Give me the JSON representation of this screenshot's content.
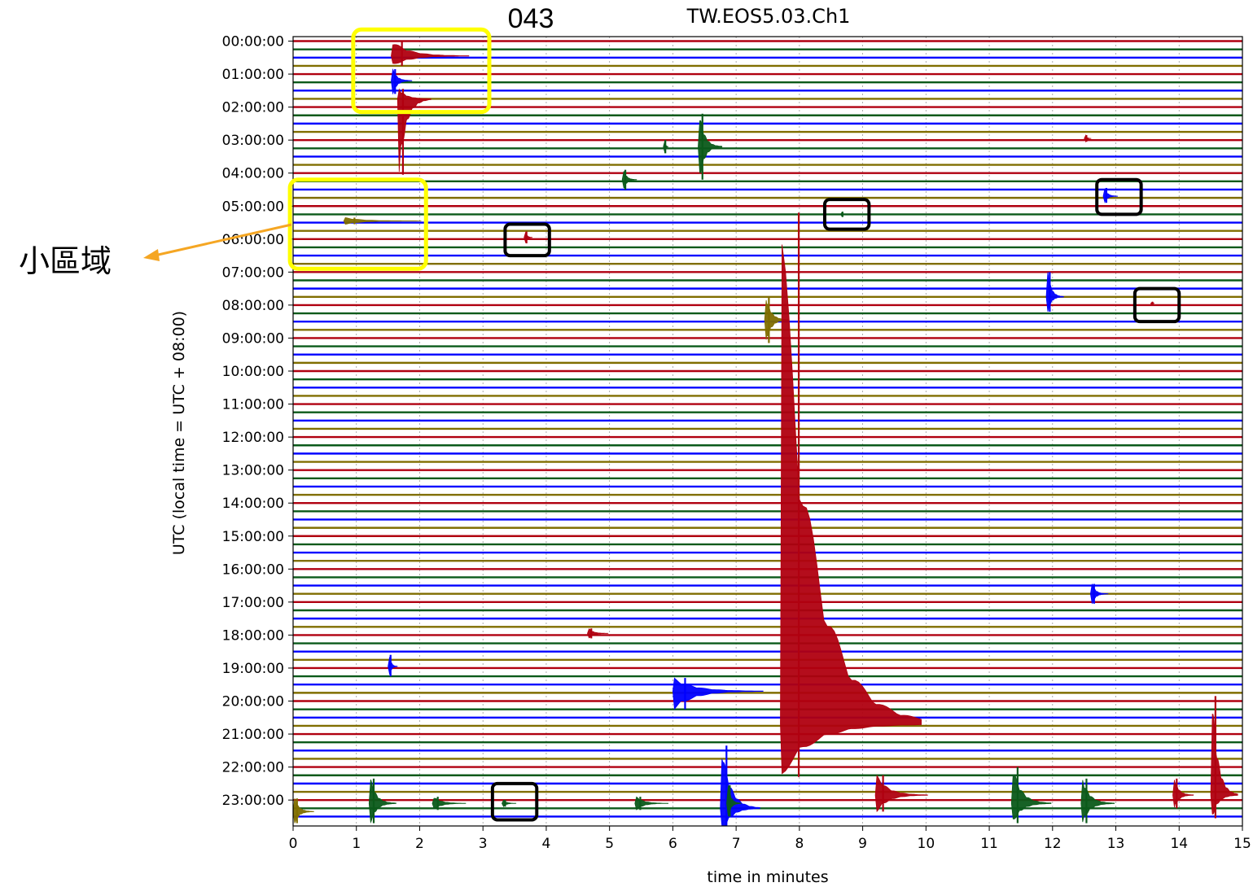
{
  "chart_data": {
    "type": "line",
    "title": "TW.EOS5.03.Ch1",
    "xlabel": "time in minutes",
    "ylabel": "UTC (local time = UTC + 08:00)",
    "xlim": [
      0,
      15
    ],
    "x_ticks": [
      "0",
      "1",
      "2",
      "3",
      "4",
      "5",
      "6",
      "7",
      "8",
      "9",
      "10",
      "11",
      "12",
      "13",
      "14",
      "15"
    ],
    "y_ticks": [
      "00:00:00",
      "01:00:00",
      "02:00:00",
      "03:00:00",
      "04:00:00",
      "05:00:00",
      "06:00:00",
      "07:00:00",
      "08:00:00",
      "09:00:00",
      "10:00:00",
      "11:00:00",
      "12:00:00",
      "13:00:00",
      "14:00:00",
      "15:00:00",
      "16:00:00",
      "17:00:00",
      "18:00:00",
      "19:00:00",
      "20:00:00",
      "21:00:00",
      "22:00:00",
      "23:00:00"
    ],
    "traces_per_hour": 4,
    "trace_colors": [
      "#b00010",
      "#0b5a1a",
      "#0000ff",
      "#806e00"
    ],
    "grid": "vertical dotted",
    "events": [
      {
        "hour": 0.45,
        "minute": 1.55,
        "amp_up": 0.45,
        "amp_down": 0.3,
        "decay": 1.2,
        "color": "#b00010"
      },
      {
        "hour": 1.75,
        "minute": 1.65,
        "amp_up": 0.3,
        "amp_down": 2.3,
        "decay": 0.5,
        "color": "#b00010"
      },
      {
        "hour": 1.2,
        "minute": 1.55,
        "amp_up": 0.35,
        "amp_down": 0.4,
        "decay": 0.3,
        "color": "#0000ff"
      },
      {
        "hour": 3.2,
        "minute": 6.4,
        "amp_up": 1.0,
        "amp_down": 1.0,
        "decay": 0.35,
        "color": "#0b5a1a"
      },
      {
        "hour": 3.2,
        "minute": 5.85,
        "amp_up": 0.2,
        "amp_down": 0.2,
        "decay": 0.05,
        "color": "#0b5a1a"
      },
      {
        "hour": 2.95,
        "minute": 12.5,
        "amp_up": 0.1,
        "amp_down": 0.1,
        "decay": 0.08,
        "color": "#b00010"
      },
      {
        "hour": 4.2,
        "minute": 5.2,
        "amp_up": 0.3,
        "amp_down": 0.3,
        "decay": 0.2,
        "color": "#0b5a1a"
      },
      {
        "hour": 4.7,
        "minute": 12.8,
        "amp_up": 0.25,
        "amp_down": 0.2,
        "decay": 0.2,
        "color": "#0000ff"
      },
      {
        "hour": 5.45,
        "minute": 0.8,
        "amp_up": 0.1,
        "amp_down": 0.1,
        "decay": 1.2,
        "color": "#806e00"
      },
      {
        "hour": 5.25,
        "minute": 8.65,
        "amp_up": 0.08,
        "amp_down": 0.08,
        "decay": 0.05,
        "color": "#0b5a1a"
      },
      {
        "hour": 5.95,
        "minute": 3.65,
        "amp_up": 0.18,
        "amp_down": 0.18,
        "decay": 0.1,
        "color": "#b00010"
      },
      {
        "hour": 7.75,
        "minute": 11.9,
        "amp_up": 0.75,
        "amp_down": 0.45,
        "decay": 0.25,
        "color": "#0000ff"
      },
      {
        "hour": 7.95,
        "minute": 13.55,
        "amp_up": 0.05,
        "amp_down": 0.05,
        "decay": 0.03,
        "color": "#b00010"
      },
      {
        "hour": 8.45,
        "minute": 7.45,
        "amp_up": 0.7,
        "amp_down": 0.7,
        "decay": 0.35,
        "color": "#806e00"
      },
      {
        "hour": 16.75,
        "minute": 12.6,
        "amp_up": 0.3,
        "amp_down": 0.3,
        "decay": 0.25,
        "color": "#0000ff"
      },
      {
        "hour": 17.95,
        "minute": 4.65,
        "amp_up": 0.15,
        "amp_down": 0.15,
        "decay": 0.3,
        "color": "#b00010"
      },
      {
        "hour": 18.95,
        "minute": 1.5,
        "amp_up": 0.35,
        "amp_down": 0.3,
        "decay": 0.12,
        "color": "#0000ff"
      },
      {
        "hour": 19.7,
        "minute": 6.0,
        "amp_up": 0.4,
        "amp_down": 0.55,
        "decay": 1.4,
        "color": "#0000ff"
      },
      {
        "hour": 20.7,
        "minute": 7.7,
        "amp_up": 15.5,
        "amp_down": 1.6,
        "decay": 2.2,
        "color": "#b00010"
      },
      {
        "hour": 23.25,
        "minute": 6.75,
        "amp_up": 1.9,
        "amp_down": 0.8,
        "decay": 0.6,
        "color": "#0000ff"
      },
      {
        "hour": 23.1,
        "minute": 6.85,
        "amp_up": 0.55,
        "amp_down": 0.4,
        "decay": 0.2,
        "color": "#0b5a1a"
      },
      {
        "hour": 23.1,
        "minute": 1.2,
        "amp_up": 0.75,
        "amp_down": 0.6,
        "decay": 0.4,
        "color": "#0b5a1a"
      },
      {
        "hour": 23.1,
        "minute": 2.2,
        "amp_up": 0.2,
        "amp_down": 0.2,
        "decay": 0.5,
        "color": "#0b5a1a"
      },
      {
        "hour": 23.1,
        "minute": 3.3,
        "amp_up": 0.1,
        "amp_down": 0.1,
        "decay": 0.2,
        "color": "#0b5a1a"
      },
      {
        "hour": 23.1,
        "minute": 5.4,
        "amp_up": 0.2,
        "amp_down": 0.2,
        "decay": 0.5,
        "color": "#0b5a1a"
      },
      {
        "hour": 23.1,
        "minute": 11.35,
        "amp_up": 1.1,
        "amp_down": 0.6,
        "decay": 0.6,
        "color": "#0b5a1a"
      },
      {
        "hour": 23.1,
        "minute": 12.45,
        "amp_up": 0.75,
        "amp_down": 0.6,
        "decay": 0.5,
        "color": "#0b5a1a"
      },
      {
        "hour": 22.85,
        "minute": 9.2,
        "amp_up": 0.6,
        "amp_down": 0.5,
        "decay": 0.8,
        "color": "#b00010"
      },
      {
        "hour": 22.85,
        "minute": 14.5,
        "amp_up": 3.0,
        "amp_down": 0.7,
        "decay": 0.4,
        "color": "#b00010"
      },
      {
        "hour": 22.85,
        "minute": 13.9,
        "amp_up": 0.5,
        "amp_down": 0.4,
        "decay": 0.3,
        "color": "#b00010"
      },
      {
        "hour": 23.35,
        "minute": 0.0,
        "amp_up": 0.4,
        "amp_down": 0.35,
        "decay": 0.3,
        "color": "#806e00"
      }
    ],
    "annotations": {
      "highlight_boxes": [
        {
          "x0": 0.95,
          "x1": 3.1,
          "h0": -0.35,
          "h1": 2.15,
          "color": "#ffff00"
        },
        {
          "x0": -0.05,
          "x1": 2.1,
          "h0": 4.2,
          "h1": 6.9,
          "color": "#ffff00"
        }
      ],
      "marker_boxes": [
        {
          "x0": 3.35,
          "x1": 4.05,
          "h0": 5.55,
          "h1": 6.5
        },
        {
          "x0": 8.4,
          "x1": 9.1,
          "h0": 4.8,
          "h1": 5.7
        },
        {
          "x0": 12.7,
          "x1": 13.4,
          "h0": 4.2,
          "h1": 5.25
        },
        {
          "x0": 13.3,
          "x1": 14.0,
          "h0": 7.5,
          "h1": 8.5
        },
        {
          "x0": 3.15,
          "x1": 3.85,
          "h0": 22.5,
          "h1": 23.6
        }
      ]
    }
  },
  "labels": {
    "figure_number": "043",
    "region_label": "小區域"
  },
  "colors": {
    "highlight": "#ffff00",
    "arrow": "#f5a623",
    "marker_box": "#000000"
  }
}
